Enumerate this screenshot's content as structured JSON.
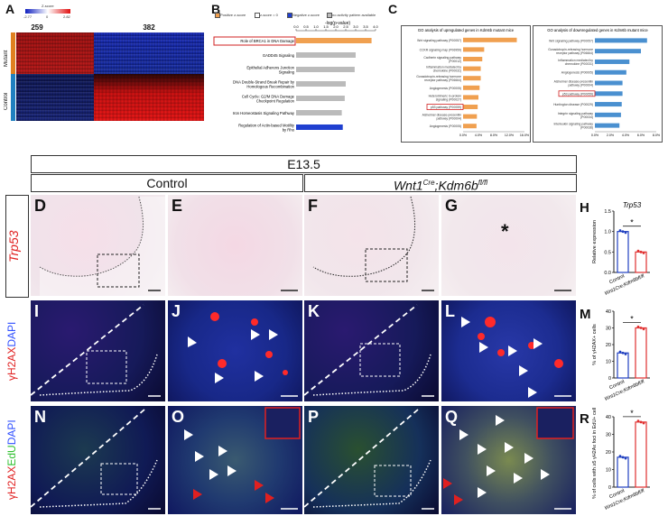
{
  "panel_letters": {
    "A": "A",
    "B": "B",
    "C": "C",
    "D": "D",
    "E": "E",
    "F": "F",
    "G": "G",
    "H": "H",
    "I": "I",
    "J": "J",
    "K": "K",
    "L": "L",
    "M": "M",
    "N": "N",
    "O": "O",
    "P": "P",
    "Q": "Q",
    "R": "R"
  },
  "heatmap": {
    "zscore_label": "Z-score",
    "scale_min": "-2.77",
    "scale_mid": "0",
    "scale_max": "2.82",
    "col_counts": [
      "259",
      "382"
    ],
    "row_labels": [
      "Mutant",
      "Control"
    ],
    "colors": {
      "high": "#e01010",
      "low": "#1020c0",
      "mid": "#101010"
    }
  },
  "panelB": {
    "legend": [
      "Positive z-score",
      "z-score = 0",
      "Negative z-score",
      "no activity pattern available"
    ],
    "legend_colors": [
      "#f0a050",
      "#ffffff",
      "#2040d0",
      "#bbbbbb"
    ],
    "axis_title": "-log(p-value)",
    "ticks": [
      "0.0",
      "0.5",
      "1.0",
      "1.5",
      "2.0",
      "2.5",
      "3.0",
      "3.5",
      "4.0"
    ],
    "pathways": [
      "Role of BRCA1 in DNA Damage",
      "GADD45 Signaling",
      "Epithelial Adherens Junction Signaling",
      "DNA Double-Strand Break Repair by Homologous Recombination",
      "Cell Cycle: G2/M DNA Damage Checkpoint Regulation",
      "Iron Homeostasis Signaling Pathway",
      "Regulation of Actin-based Motility by Rho"
    ],
    "values": [
      3.8,
      3.0,
      2.95,
      2.5,
      2.45,
      2.3,
      2.35
    ],
    "bar_colors": [
      "#f0a050",
      "#bbbbbb",
      "#bbbbbb",
      "#bbbbbb",
      "#bbbbbb",
      "#bbbbbb",
      "#2040d0"
    ]
  },
  "panelC": {
    "left_title": "GO analysis of upregulated genes in Kdm6b mutant mice",
    "right_title": "GO analysis of downregulated genes in Kdm6b mutant mice",
    "left_items": [
      "Wnt signaling pathway (P00057)",
      "CCKR signaling map (P06959)",
      "Cadherin signaling pathway (P00012)",
      "Inflammation mediated by chemokine (P00031)",
      "Gonadotropin-releasing hormone receptor pathway (P06664)",
      "Angiogenesis (P00005)",
      "Heterotrimeric G-protein signaling (P00027)",
      "p53 pathway (P00059)",
      "Alzheimer disease-presenilin pathway (P00004)",
      "Angiogenesis (P00005)"
    ],
    "left_values": [
      14.0,
      5.5,
      5.0,
      4.6,
      4.6,
      4.3,
      4.0,
      3.8,
      3.6,
      3.5
    ],
    "left_ticks": [
      "0.0%",
      "4.0%",
      "8.0%",
      "12.0%",
      "16.0%"
    ],
    "right_items": [
      "Wnt signaling pathway (P00057)",
      "Gonadotropin-releasing hormone receptor pathway (P06664)",
      "Inflammation mediated by chemokine (P00031)",
      "Angiogenesis (P00005)",
      "Alzheimer disease-presenilin pathway (P00004)",
      "p53 pathway (P00059)",
      "Huntington disease (P00029)",
      "Integrin signaling pathway (P00034)",
      "Interleukin signaling pathway (P00036)"
    ],
    "right_values": [
      6.8,
      6.0,
      4.5,
      4.1,
      3.6,
      3.6,
      3.5,
      3.4,
      3.2
    ],
    "right_ticks": [
      "0.0%",
      "2.0%",
      "4.0%",
      "6.0%",
      "8.0%"
    ],
    "left_color": "#f0a050",
    "right_color": "#4a90d0",
    "highlight_color": "#d02020"
  },
  "headers": {
    "stage": "E13.5",
    "control": "Control",
    "mutant_gene": "Wnt1",
    "mutant_sup1": "Cre",
    "mutant_sep": ";",
    "mutant_gene2": "Kdm6b",
    "mutant_sup2": "fl/fl"
  },
  "row_labels": {
    "trp53": "Trp53",
    "ih2ax_prefix": "γH2AX",
    "ih2ax_suffix": "DAPI",
    "n_prefix": "γH2AX",
    "n_mid": "EdU",
    "n_suffix": "DAPI"
  },
  "panelH": {
    "title": "Trp53",
    "ylabel": "Relative expression",
    "yticks": [
      "0.0",
      "0.5",
      "1.0",
      "1.5"
    ],
    "ylim": [
      0,
      1.5
    ],
    "control": 1.0,
    "mutant": 0.5,
    "sig": "*",
    "xlabels": [
      "Control",
      "Wnt1Cre;Kdm6bfl/fl"
    ]
  },
  "panelM": {
    "ylabel": "% of γH2AX+ cells",
    "yticks": [
      "0",
      "10",
      "20",
      "30",
      "40"
    ],
    "ylim": [
      0,
      40
    ],
    "control": 15,
    "mutant": 30,
    "sig": "*",
    "xlabels": [
      "Control",
      "Wnt1Cre;Kdm6bfl/fl"
    ]
  },
  "panelR": {
    "ylabel": "% of cells with ≥5 γH2Ax foci in EdU+ cells",
    "yticks": [
      "0",
      "10",
      "20",
      "30",
      "40"
    ],
    "ylim": [
      0,
      40
    ],
    "control": 17,
    "mutant": 37,
    "sig": "*",
    "xlabels": [
      "Control",
      "Wnt1Cre;Kdm6bfl/fl"
    ]
  },
  "asterisk_G": "*",
  "colors": {
    "control_bar": "#2040c0",
    "mutant_bar": "#e03030",
    "trp53": "#e02020",
    "gh2ax": "#ff2020",
    "dapi": "#3050ff",
    "edu": "#30e030"
  }
}
